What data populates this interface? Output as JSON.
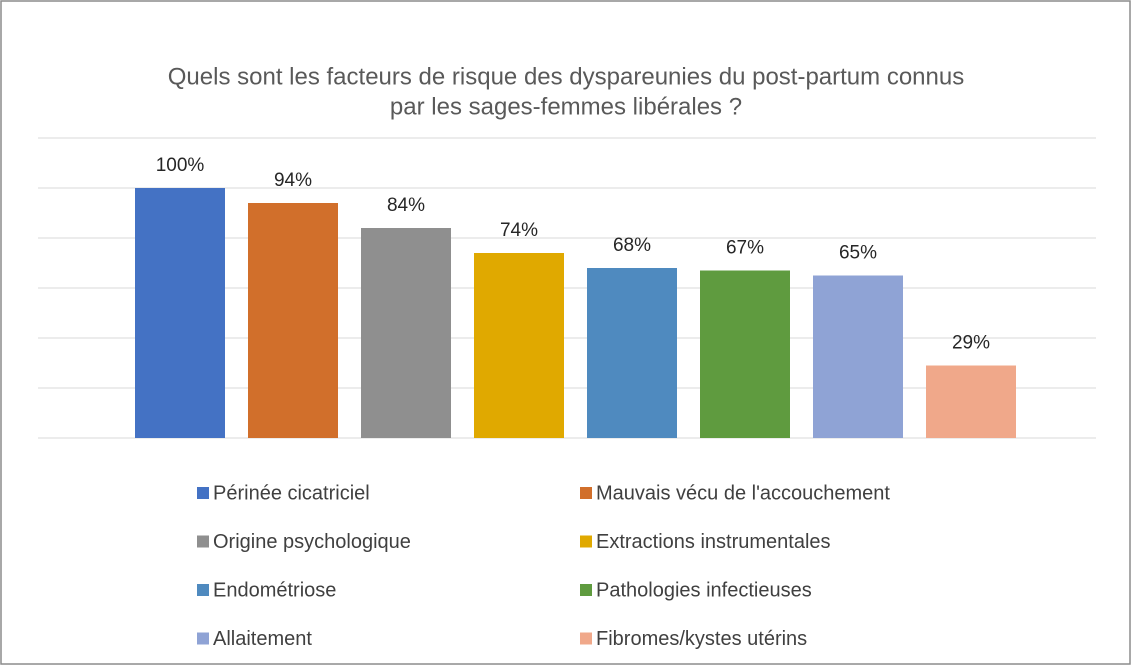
{
  "chart_data": {
    "type": "bar",
    "title": [
      "Quels sont les facteurs de risque des dyspareunies du post-partum connus",
      "par les sages-femmes libérales ?"
    ],
    "categories": [
      "Périnée cicatriciel",
      "Mauvais vécu de l'accouchement",
      "Origine psychologique",
      "Extractions instrumentales",
      "Endométriose",
      "Pathologies infectieuses",
      "Allaitement",
      "Fibromes/kystes utérins"
    ],
    "values": [
      100,
      94,
      84,
      74,
      68,
      67,
      65,
      29
    ],
    "value_labels": [
      "100%",
      "94%",
      "84%",
      "74%",
      "68%",
      "67%",
      "65%",
      "29%"
    ],
    "colors": [
      "#4472c4",
      "#d16f2b",
      "#8f8f8f",
      "#e0a900",
      "#4f8abf",
      "#5f9b3f",
      "#8fa3d5",
      "#f0a88a"
    ],
    "ylim": [
      0,
      120
    ],
    "yticks": [
      0,
      20,
      40,
      60,
      80,
      100,
      120
    ],
    "grid": true
  }
}
